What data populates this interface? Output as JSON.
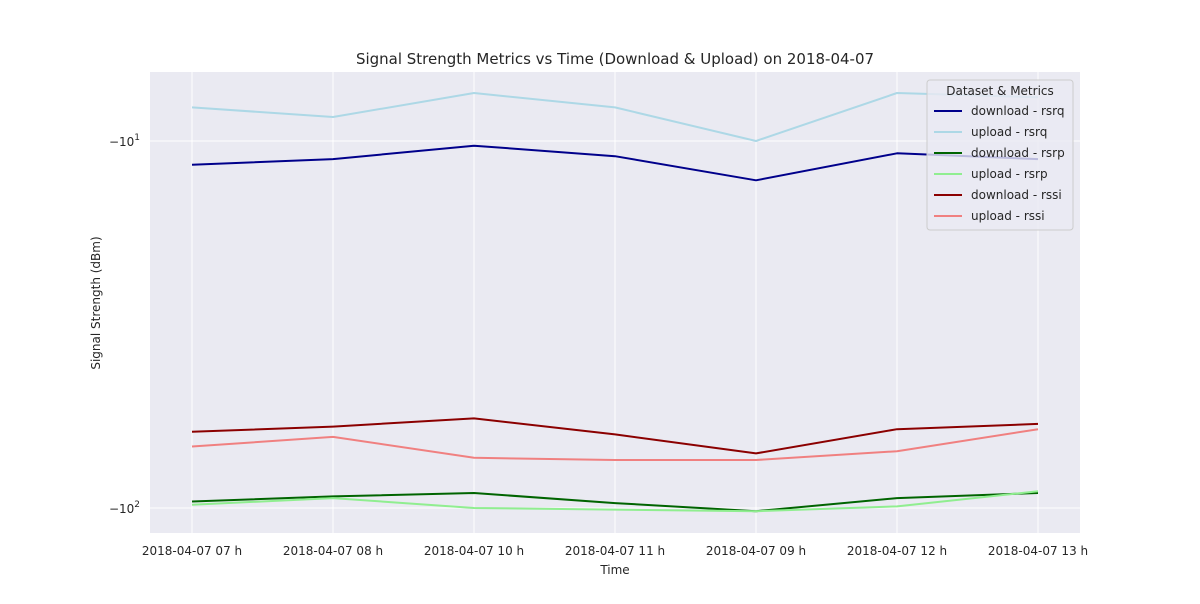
{
  "chart_data": {
    "type": "line",
    "title": "Signal Strength Metrics vs Time (Download & Upload) on 2018-04-07",
    "xlabel": "Time",
    "ylabel": "Signal Strength (dBm)",
    "y_scale": "symlog (negative values, log magnitude)",
    "ylim": [
      -9,
      -110
    ],
    "y_ticks": [
      {
        "value": -10,
        "base": "−10",
        "exp": "1"
      },
      {
        "value": -100,
        "base": "−10",
        "exp": "2"
      }
    ],
    "categories": [
      "2018-04-07 07 h",
      "2018-04-07 08 h",
      "2018-04-07 10 h",
      "2018-04-07 11 h",
      "2018-04-07 09 h",
      "2018-04-07 12 h",
      "2018-04-07 13 h"
    ],
    "grid": true,
    "legend": {
      "title": "Dataset & Metrics",
      "placement": "top-right"
    },
    "series": [
      {
        "name": "download - rsrq",
        "color": "#00008b",
        "values": [
          -11.6,
          -11.2,
          -10.3,
          -11.0,
          -12.8,
          -10.8,
          -11.2
        ]
      },
      {
        "name": "upload - rsrq",
        "color": "#add8e6",
        "values": [
          -8.1,
          -8.6,
          -7.4,
          -8.1,
          -10.0,
          -7.4,
          -7.6
        ]
      },
      {
        "name": "download - rsrp",
        "color": "#006400",
        "values": [
          -96,
          -93,
          -91,
          -97,
          -102,
          -94,
          -91
        ]
      },
      {
        "name": "upload - rsrp",
        "color": "#90ee90",
        "values": [
          -98,
          -94,
          -100,
          -101,
          -102,
          -99,
          -90
        ]
      },
      {
        "name": "download - rssi",
        "color": "#8b0000",
        "values": [
          -62,
          -60,
          -57,
          -63,
          -71,
          -61,
          -59
        ]
      },
      {
        "name": "upload - rssi",
        "color": "#f08080",
        "values": [
          -68,
          -64,
          -73,
          -74,
          -74,
          -70,
          -61
        ]
      }
    ]
  }
}
